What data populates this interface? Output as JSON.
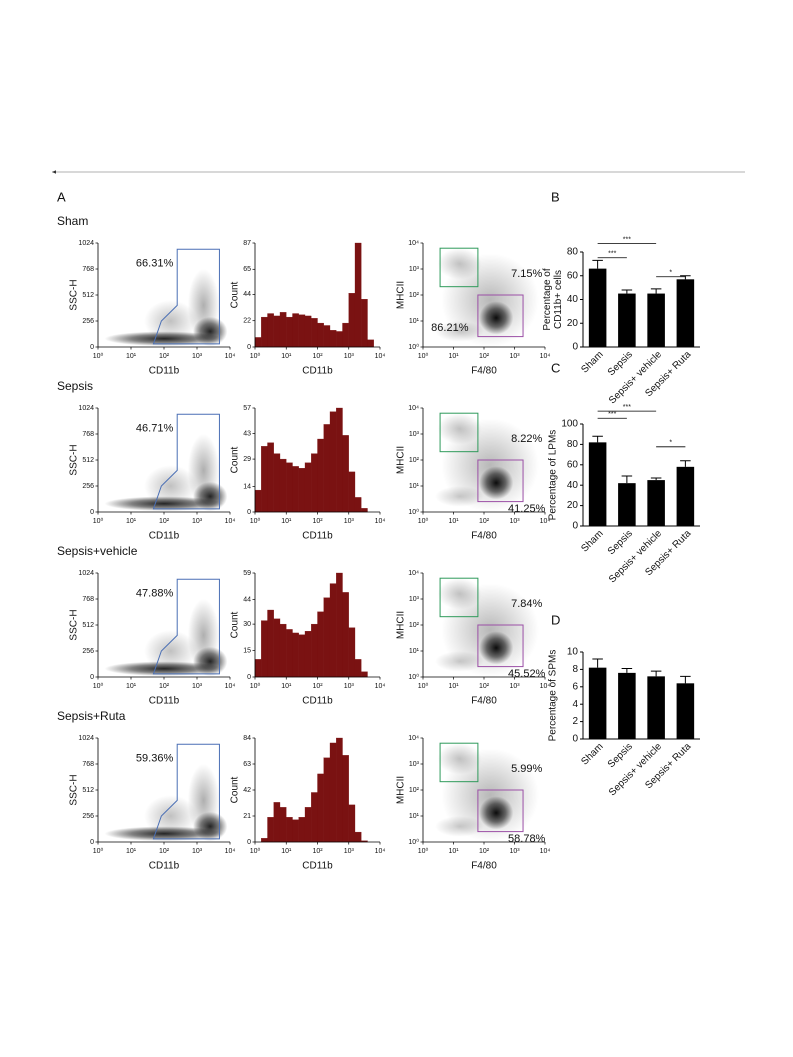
{
  "panel_labels": [
    "A",
    "B",
    "C",
    "D"
  ],
  "flow": {
    "ssc_label": "SSC-H",
    "cd11b_label": "CD11b",
    "mhcii_label": "MHCII",
    "f480_label": "F4/80",
    "ssc_lim": [
      0,
      1024
    ],
    "ssc_ticks": [
      0,
      256,
      512,
      768,
      1024
    ],
    "log_lim": [
      0,
      4
    ],
    "log_ticks": [
      {
        "value": 0,
        "label": "10⁰"
      },
      {
        "value": 1,
        "label": "10¹"
      },
      {
        "value": 2,
        "label": "10²"
      },
      {
        "value": 3,
        "label": "10³"
      },
      {
        "value": 4,
        "label": "10⁴"
      }
    ],
    "groups": [
      {
        "name": "Sham",
        "cd11b_gate": "66.31%",
        "mhcii_gate": "7.15%",
        "f480_gate": "86.21%"
      },
      {
        "name": "Sepsis",
        "cd11b_gate": "46.71%",
        "mhcii_gate": "8.22%",
        "f480_gate": "41.25%"
      },
      {
        "name": "Sepsis+vehicle",
        "cd11b_gate": "47.88%",
        "mhcii_gate": "7.84%",
        "f480_gate": "45.52%"
      },
      {
        "name": "Sepsis+Ruta",
        "cd11b_gate": "59.36%",
        "mhcii_gate": "5.99%",
        "f480_gate": "58.78%"
      }
    ]
  },
  "chart_data": [
    {
      "type": "bar",
      "ylabel": [
        "Percentage of",
        "CD11b+ cells"
      ],
      "categories": [
        "Sham",
        "Sepsis",
        "Sepsis+ vehicle",
        "Sepsis+ Ruta"
      ],
      "values": [
        66,
        45,
        45,
        57
      ],
      "errors": [
        7,
        3,
        4,
        3
      ],
      "color": "#000000",
      "ylim": [
        0,
        80
      ],
      "yticks": [
        0,
        20,
        40,
        60,
        80
      ],
      "annotations": [
        {
          "label": "***",
          "between": [
            "Sham",
            "Sepsis+ vehicle"
          ]
        },
        {
          "label": "***",
          "between": [
            "Sham",
            "Sepsis"
          ]
        },
        {
          "label": "*",
          "between": [
            "Sepsis+ vehicle",
            "Sepsis+ Ruta"
          ]
        }
      ]
    },
    {
      "type": "bar",
      "ylabel": [
        "Percentage of LPMs"
      ],
      "categories": [
        "Sham",
        "Sepsis",
        "Sepsis+ vehicle",
        "Sepsis+ Ruta"
      ],
      "values": [
        82,
        42,
        45,
        58
      ],
      "errors": [
        6,
        7,
        2,
        6
      ],
      "color": "#000000",
      "ylim": [
        0,
        100
      ],
      "yticks": [
        0,
        20,
        40,
        60,
        80,
        100
      ],
      "annotations": [
        {
          "label": "***",
          "between": [
            "Sham",
            "Sepsis+ vehicle"
          ]
        },
        {
          "label": "***",
          "between": [
            "Sham",
            "Sepsis"
          ]
        },
        {
          "label": "*",
          "between": [
            "Sepsis+ vehicle",
            "Sepsis+ Ruta"
          ]
        }
      ]
    },
    {
      "type": "bar",
      "ylabel": [
        "Percentage of SPMs"
      ],
      "categories": [
        "Sham",
        "Sepsis",
        "Sepsis+ vehicle",
        "Sepsis+ Ruta"
      ],
      "values": [
        8.2,
        7.6,
        7.2,
        6.4
      ],
      "errors": [
        1.0,
        0.5,
        0.6,
        0.8
      ],
      "color": "#000000",
      "ylim": [
        0,
        10
      ],
      "yticks": [
        0,
        2,
        4,
        6,
        8,
        10
      ]
    },
    {
      "type": "histogram",
      "xlabel": "CD11b",
      "ylabel": "Count",
      "color": "#7a1212",
      "bins": [
        0,
        0.2,
        0.4,
        0.6,
        0.8,
        1,
        1.2,
        1.4,
        1.6,
        1.8,
        2,
        2.2,
        2.4,
        2.6,
        2.8,
        3,
        3.2,
        3.4,
        3.6,
        3.8,
        4
      ],
      "values": [
        8,
        25,
        28,
        26,
        29,
        25,
        28,
        27,
        26,
        24,
        20,
        18,
        14,
        13,
        20,
        45,
        87,
        40,
        6,
        0
      ],
      "xlim": [
        0,
        4
      ],
      "xticks": [
        {
          "value": 0,
          "label": "10⁰"
        },
        {
          "value": 1,
          "label": "10¹"
        },
        {
          "value": 2,
          "label": "10²"
        },
        {
          "value": 3,
          "label": "10³"
        },
        {
          "value": 4,
          "label": "10⁴"
        }
      ],
      "ylim": [
        0,
        87
      ],
      "yticks": [
        0,
        22,
        44,
        65,
        87
      ]
    },
    {
      "type": "histogram",
      "xlabel": "CD11b",
      "ylabel": "Count",
      "color": "#7a1212",
      "bins": [
        0,
        0.2,
        0.4,
        0.6,
        0.8,
        1,
        1.2,
        1.4,
        1.6,
        1.8,
        2,
        2.2,
        2.4,
        2.6,
        2.8,
        3,
        3.2,
        3.4,
        3.6,
        3.8,
        4
      ],
      "values": [
        12,
        36,
        38,
        32,
        29,
        27,
        25,
        24,
        27,
        32,
        40,
        48,
        55,
        57,
        42,
        22,
        8,
        2,
        0,
        0
      ],
      "xlim": [
        0,
        4
      ],
      "xticks": [
        {
          "value": 0,
          "label": "10⁰"
        },
        {
          "value": 1,
          "label": "10¹"
        },
        {
          "value": 2,
          "label": "10²"
        },
        {
          "value": 3,
          "label": "10³"
        },
        {
          "value": 4,
          "label": "10⁴"
        }
      ],
      "ylim": [
        0,
        57
      ],
      "yticks": [
        0,
        14,
        29,
        43,
        57
      ]
    },
    {
      "type": "histogram",
      "xlabel": "CD11b",
      "ylabel": "Count",
      "color": "#7a1212",
      "bins": [
        0,
        0.2,
        0.4,
        0.6,
        0.8,
        1,
        1.2,
        1.4,
        1.6,
        1.8,
        2,
        2.2,
        2.4,
        2.6,
        2.8,
        3,
        3.2,
        3.4,
        3.6,
        3.8,
        4
      ],
      "values": [
        10,
        32,
        38,
        33,
        30,
        27,
        25,
        24,
        26,
        30,
        37,
        45,
        53,
        59,
        48,
        28,
        10,
        3,
        0,
        0
      ],
      "xlim": [
        0,
        4
      ],
      "xticks": [
        {
          "value": 0,
          "label": "10⁰"
        },
        {
          "value": 1,
          "label": "10¹"
        },
        {
          "value": 2,
          "label": "10²"
        },
        {
          "value": 3,
          "label": "10³"
        },
        {
          "value": 4,
          "label": "10⁴"
        }
      ],
      "ylim": [
        0,
        59
      ],
      "yticks": [
        0,
        15,
        30,
        44,
        59
      ]
    },
    {
      "type": "histogram",
      "xlabel": "CD11b",
      "ylabel": "Count",
      "color": "#7a1212",
      "bins": [
        0,
        0.2,
        0.4,
        0.6,
        0.8,
        1,
        1.2,
        1.4,
        1.6,
        1.8,
        2,
        2.2,
        2.4,
        2.6,
        2.8,
        3,
        3.2,
        3.4,
        3.6,
        3.8,
        4
      ],
      "values": [
        0,
        3,
        20,
        32,
        28,
        20,
        18,
        20,
        28,
        40,
        55,
        68,
        80,
        84,
        70,
        30,
        8,
        1,
        0,
        0
      ],
      "xlim": [
        0,
        4
      ],
      "xticks": [
        {
          "value": 0,
          "label": "10⁰"
        },
        {
          "value": 1,
          "label": "10¹"
        },
        {
          "value": 2,
          "label": "10²"
        },
        {
          "value": 3,
          "label": "10³"
        },
        {
          "value": 4,
          "label": "10⁴"
        }
      ],
      "ylim": [
        0,
        84
      ],
      "yticks": [
        0,
        21,
        42,
        63,
        84
      ]
    }
  ]
}
